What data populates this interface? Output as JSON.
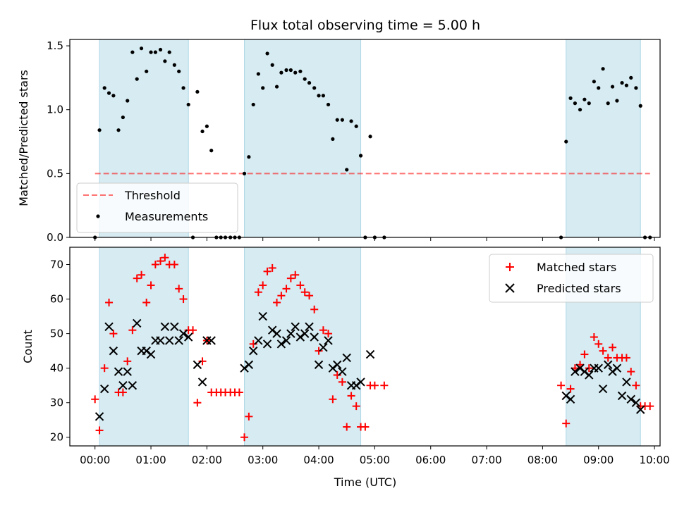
{
  "colors": {
    "band": "#add8e6",
    "threshold": "#ff0000",
    "measurement": "#000000",
    "matched": "#ff0000",
    "predicted": "#000000"
  },
  "chart_data": [
    {
      "type": "scatter",
      "title": "Flux total observing time = 5.00 h",
      "xlabel": "",
      "ylabel": "Matched/Predicted stars",
      "ylim": [
        0,
        1.55
      ],
      "yticks": [
        0.0,
        0.5,
        1.0,
        1.5
      ],
      "ytick_labels": [
        "0.0",
        "0.5",
        "1.0",
        "1.5"
      ],
      "xlim_hours": [
        -0.45,
        10.1
      ],
      "observing_windows_hours": [
        [
          0.08,
          1.67
        ],
        [
          2.67,
          4.75
        ],
        [
          8.42,
          9.75
        ]
      ],
      "threshold": {
        "name": "Threshold",
        "value": 0.5,
        "x_range_hours": [
          0.0,
          9.92
        ],
        "style": "dashed"
      },
      "legend": {
        "position": "lower-left",
        "entries": [
          "Threshold",
          "Measurements"
        ]
      },
      "series": [
        {
          "name": "Measurements",
          "marker": "dot",
          "x_hours": [
            0.0,
            0.08,
            0.17,
            0.25,
            0.33,
            0.42,
            0.5,
            0.58,
            0.67,
            0.75,
            0.83,
            0.92,
            1.0,
            1.08,
            1.17,
            1.25,
            1.33,
            1.42,
            1.5,
            1.58,
            1.67,
            1.75,
            1.83,
            1.92,
            2.0,
            2.08,
            2.17,
            2.25,
            2.33,
            2.42,
            2.5,
            2.58,
            2.67,
            2.75,
            2.83,
            2.92,
            3.0,
            3.08,
            3.17,
            3.25,
            3.33,
            3.42,
            3.5,
            3.58,
            3.67,
            3.75,
            3.83,
            3.92,
            4.0,
            4.08,
            4.17,
            4.25,
            4.33,
            4.42,
            4.5,
            4.58,
            4.67,
            4.75,
            4.83,
            4.92,
            5.0,
            5.17,
            8.33,
            8.42,
            8.5,
            8.58,
            8.67,
            8.75,
            8.83,
            8.92,
            9.0,
            9.08,
            9.17,
            9.25,
            9.33,
            9.42,
            9.5,
            9.58,
            9.67,
            9.75,
            9.83,
            9.92
          ],
          "y": [
            0.0,
            0.84,
            1.17,
            1.13,
            1.11,
            0.84,
            0.94,
            1.07,
            1.45,
            1.24,
            1.48,
            1.3,
            1.45,
            1.45,
            1.47,
            1.38,
            1.45,
            1.35,
            1.3,
            1.17,
            1.04,
            0.0,
            1.14,
            0.83,
            0.87,
            0.68,
            0.0,
            0.0,
            0.0,
            0.0,
            0.0,
            0.0,
            0.5,
            0.63,
            1.04,
            1.28,
            1.17,
            1.44,
            1.35,
            1.18,
            1.29,
            1.31,
            1.31,
            1.29,
            1.3,
            1.24,
            1.21,
            1.17,
            1.11,
            1.11,
            1.04,
            0.77,
            0.92,
            0.92,
            0.53,
            0.91,
            0.87,
            0.64,
            0.0,
            0.79,
            0.0,
            0.0,
            0.0,
            0.75,
            1.09,
            1.05,
            1.0,
            1.08,
            1.05,
            1.22,
            1.17,
            1.32,
            1.05,
            1.18,
            1.07,
            1.21,
            1.19,
            1.25,
            1.17,
            1.03,
            0.0,
            0.0
          ]
        }
      ]
    },
    {
      "type": "scatter",
      "xlabel": "Time (UTC)",
      "ylabel": "Count",
      "ylim": [
        17.5,
        75
      ],
      "yticks": [
        20,
        30,
        40,
        50,
        60,
        70
      ],
      "ytick_labels": [
        "20",
        "30",
        "40",
        "50",
        "60",
        "70"
      ],
      "xlim_hours": [
        -0.45,
        10.1
      ],
      "xticks_hours": [
        0,
        1,
        2,
        3,
        4,
        5,
        6,
        7,
        8,
        9,
        10
      ],
      "xtick_labels": [
        "00:00",
        "01:00",
        "02:00",
        "03:00",
        "04:00",
        "05:00",
        "06:00",
        "07:00",
        "08:00",
        "09:00",
        "10:00"
      ],
      "observing_windows_hours": [
        [
          0.08,
          1.67
        ],
        [
          2.67,
          4.75
        ],
        [
          8.42,
          9.75
        ]
      ],
      "legend": {
        "position": "top-right",
        "entries": [
          "Matched stars",
          "Predicted stars"
        ]
      },
      "series": [
        {
          "name": "Matched stars",
          "marker": "plus",
          "x_hours": [
            0.0,
            0.08,
            0.17,
            0.25,
            0.33,
            0.42,
            0.5,
            0.58,
            0.67,
            0.75,
            0.83,
            0.92,
            1.0,
            1.08,
            1.17,
            1.25,
            1.33,
            1.42,
            1.5,
            1.58,
            1.67,
            1.75,
            1.83,
            1.92,
            2.0,
            2.08,
            2.17,
            2.25,
            2.33,
            2.42,
            2.5,
            2.58,
            2.67,
            2.75,
            2.83,
            2.92,
            3.0,
            3.08,
            3.17,
            3.25,
            3.33,
            3.42,
            3.5,
            3.58,
            3.67,
            3.75,
            3.83,
            3.92,
            4.0,
            4.08,
            4.17,
            4.25,
            4.33,
            4.42,
            4.5,
            4.58,
            4.67,
            4.75,
            4.83,
            4.92,
            5.0,
            5.17,
            8.33,
            8.42,
            8.5,
            8.58,
            8.67,
            8.75,
            8.83,
            8.92,
            9.0,
            9.08,
            9.17,
            9.25,
            9.33,
            9.42,
            9.5,
            9.58,
            9.67,
            9.75,
            9.83,
            9.92
          ],
          "y": [
            31,
            22,
            40,
            59,
            50,
            33,
            33,
            42,
            51,
            66,
            67,
            59,
            64,
            70,
            71,
            72,
            70,
            70,
            63,
            60,
            51,
            51,
            30,
            42,
            48,
            33,
            33,
            33,
            33,
            33,
            33,
            33,
            20,
            26,
            47,
            62,
            64,
            68,
            69,
            59,
            61,
            63,
            66,
            67,
            64,
            62,
            61,
            57,
            45,
            51,
            50,
            31,
            38,
            36,
            23,
            32,
            29,
            23,
            23,
            35,
            35,
            35,
            35,
            24,
            34,
            40,
            41,
            44,
            40,
            49,
            47,
            45,
            43,
            46,
            43,
            43,
            43,
            39,
            35,
            29,
            29,
            29
          ]
        },
        {
          "name": "Predicted stars",
          "marker": "x",
          "x_hours": [
            0.08,
            0.17,
            0.25,
            0.33,
            0.42,
            0.5,
            0.58,
            0.67,
            0.75,
            0.83,
            0.92,
            1.0,
            1.08,
            1.17,
            1.25,
            1.33,
            1.42,
            1.5,
            1.58,
            1.67,
            1.83,
            1.92,
            2.0,
            2.08,
            2.67,
            2.75,
            2.83,
            2.92,
            3.0,
            3.08,
            3.17,
            3.25,
            3.33,
            3.42,
            3.5,
            3.58,
            3.67,
            3.75,
            3.83,
            3.92,
            4.0,
            4.08,
            4.17,
            4.25,
            4.33,
            4.42,
            4.5,
            4.58,
            4.67,
            4.75,
            4.92,
            8.42,
            8.5,
            8.58,
            8.67,
            8.75,
            8.83,
            8.92,
            9.0,
            9.08,
            9.17,
            9.25,
            9.33,
            9.42,
            9.5,
            9.58,
            9.67,
            9.75
          ],
          "y": [
            26,
            34,
            52,
            45,
            39,
            35,
            39,
            35,
            53,
            45,
            45,
            44,
            48,
            48,
            52,
            48,
            52,
            48,
            50,
            49,
            41,
            36,
            48,
            48,
            40,
            41,
            45,
            48,
            55,
            47,
            51,
            50,
            47,
            48,
            50,
            52,
            49,
            50,
            52,
            49,
            41,
            46,
            48,
            40,
            41,
            39,
            43,
            35,
            35,
            36,
            44,
            32,
            31,
            39,
            40,
            39,
            38,
            40,
            40,
            34,
            41,
            39,
            40,
            32,
            36,
            31,
            30,
            28
          ]
        }
      ]
    }
  ]
}
